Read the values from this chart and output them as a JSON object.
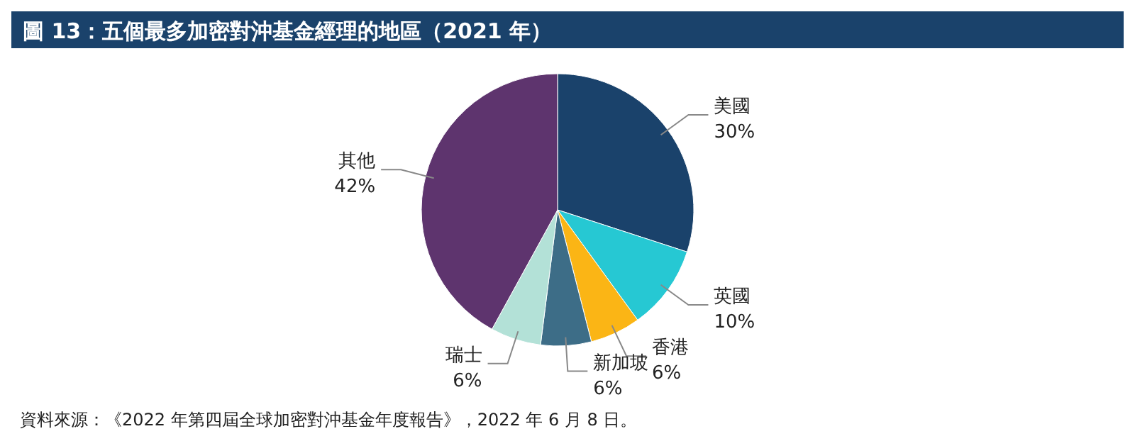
{
  "chart_data": {
    "type": "pie",
    "title": "圖 13：五個最多加密對沖基金經理的地區（2021 年）",
    "categories": [
      "美國",
      "英國",
      "香港",
      "新加坡",
      "瑞士",
      "其他"
    ],
    "values": [
      30,
      10,
      6,
      6,
      6,
      42
    ],
    "colors": [
      "#1a426b",
      "#26c8d3",
      "#fbb515",
      "#3d6d87",
      "#b3e1d7",
      "#5e346e"
    ],
    "value_labels": [
      "30%",
      "10%",
      "6%",
      "6%",
      "6%",
      "42%"
    ],
    "annotations": [
      "資料來源：《2022 年第四屆全球加密對沖基金年度報告》，2022 年 6 月 8 日。"
    ]
  }
}
